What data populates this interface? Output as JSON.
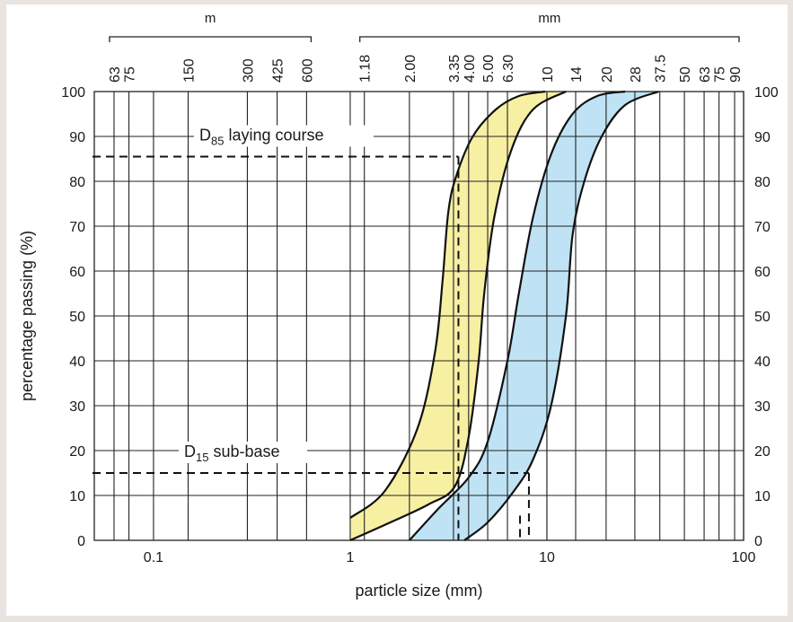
{
  "chart_data": {
    "type": "area",
    "xscale": "log",
    "xlim": [
      0.05,
      100
    ],
    "ylim": [
      0,
      100
    ],
    "xlabel": "particle size (mm)",
    "ylabel": "percentage passing (%)",
    "x_ticks": [
      {
        "value": 0.1,
        "label": "0.1"
      },
      {
        "value": 1,
        "label": "1"
      },
      {
        "value": 10,
        "label": "10"
      },
      {
        "value": 100,
        "label": "100"
      }
    ],
    "y_ticks": [
      0,
      10,
      20,
      30,
      40,
      50,
      60,
      70,
      80,
      90,
      100
    ],
    "sieve_groups": [
      {
        "label": "m",
        "from": 0.063,
        "to": 0.6
      },
      {
        "label": "mm",
        "from": 1.18,
        "to": 90
      }
    ],
    "sieve_sizes": [
      {
        "value": 0.063,
        "label": "63"
      },
      {
        "value": 0.075,
        "label": "75"
      },
      {
        "value": 0.15,
        "label": "150"
      },
      {
        "value": 0.3,
        "label": "300"
      },
      {
        "value": 0.425,
        "label": "425"
      },
      {
        "value": 0.6,
        "label": "600"
      },
      {
        "value": 1.18,
        "label": "1.18"
      },
      {
        "value": 2.0,
        "label": "2.00"
      },
      {
        "value": 3.35,
        "label": "3.35"
      },
      {
        "value": 4.0,
        "label": "4.00"
      },
      {
        "value": 5.0,
        "label": "5.00"
      },
      {
        "value": 6.3,
        "label": "6.30"
      },
      {
        "value": 10,
        "label": "10"
      },
      {
        "value": 14,
        "label": "14"
      },
      {
        "value": 20,
        "label": "20"
      },
      {
        "value": 28,
        "label": "28"
      },
      {
        "value": 37.5,
        "label": "37.5"
      },
      {
        "value": 50,
        "label": "50"
      },
      {
        "value": 63,
        "label": "63"
      },
      {
        "value": 75,
        "label": "75"
      },
      {
        "value": 90,
        "label": "90"
      }
    ],
    "bands": [
      {
        "color": "#f7f0a3",
        "upper": [
          [
            1.0,
            5
          ],
          [
            1.5,
            11
          ],
          [
            2.2,
            25
          ],
          [
            2.7,
            42
          ],
          [
            2.95,
            58
          ],
          [
            3.15,
            73
          ],
          [
            3.45,
            81
          ],
          [
            4.2,
            90
          ],
          [
            5.5,
            96
          ],
          [
            7.2,
            99
          ],
          [
            9.8,
            100
          ]
        ],
        "lower": [
          [
            1.0,
            0
          ],
          [
            1.6,
            4
          ],
          [
            2.5,
            8
          ],
          [
            3.4,
            12
          ],
          [
            4.0,
            23
          ],
          [
            4.5,
            40
          ],
          [
            4.8,
            55
          ],
          [
            5.4,
            72
          ],
          [
            6.6,
            87
          ],
          [
            8.5,
            96
          ],
          [
            12.5,
            100
          ]
        ]
      },
      {
        "color": "#bfe3f5",
        "upper": [
          [
            2.0,
            0
          ],
          [
            2.8,
            7
          ],
          [
            4.0,
            14
          ],
          [
            5.0,
            22
          ],
          [
            6.3,
            40
          ],
          [
            7.2,
            55
          ],
          [
            8.5,
            72
          ],
          [
            10.5,
            86
          ],
          [
            13.5,
            95
          ],
          [
            18,
            99
          ],
          [
            25,
            100
          ]
        ],
        "lower": [
          [
            3.8,
            0
          ],
          [
            5.0,
            4
          ],
          [
            6.8,
            11
          ],
          [
            8.5,
            18
          ],
          [
            10.5,
            30
          ],
          [
            12.5,
            50
          ],
          [
            13.5,
            68
          ],
          [
            15.5,
            80
          ],
          [
            19,
            90
          ],
          [
            25,
            97
          ],
          [
            37,
            100
          ]
        ]
      }
    ],
    "overlap_color": "#dfeadb",
    "markers": [
      {
        "label_main": "D",
        "label_sub": "85",
        "label_rest": " laying course",
        "y": 85.5,
        "x": 3.55
      },
      {
        "label_main": "D",
        "label_sub": "15",
        "label_rest": " sub-base",
        "y": 15,
        "x": 8.1
      }
    ],
    "guide_extra_x": 7.3
  }
}
